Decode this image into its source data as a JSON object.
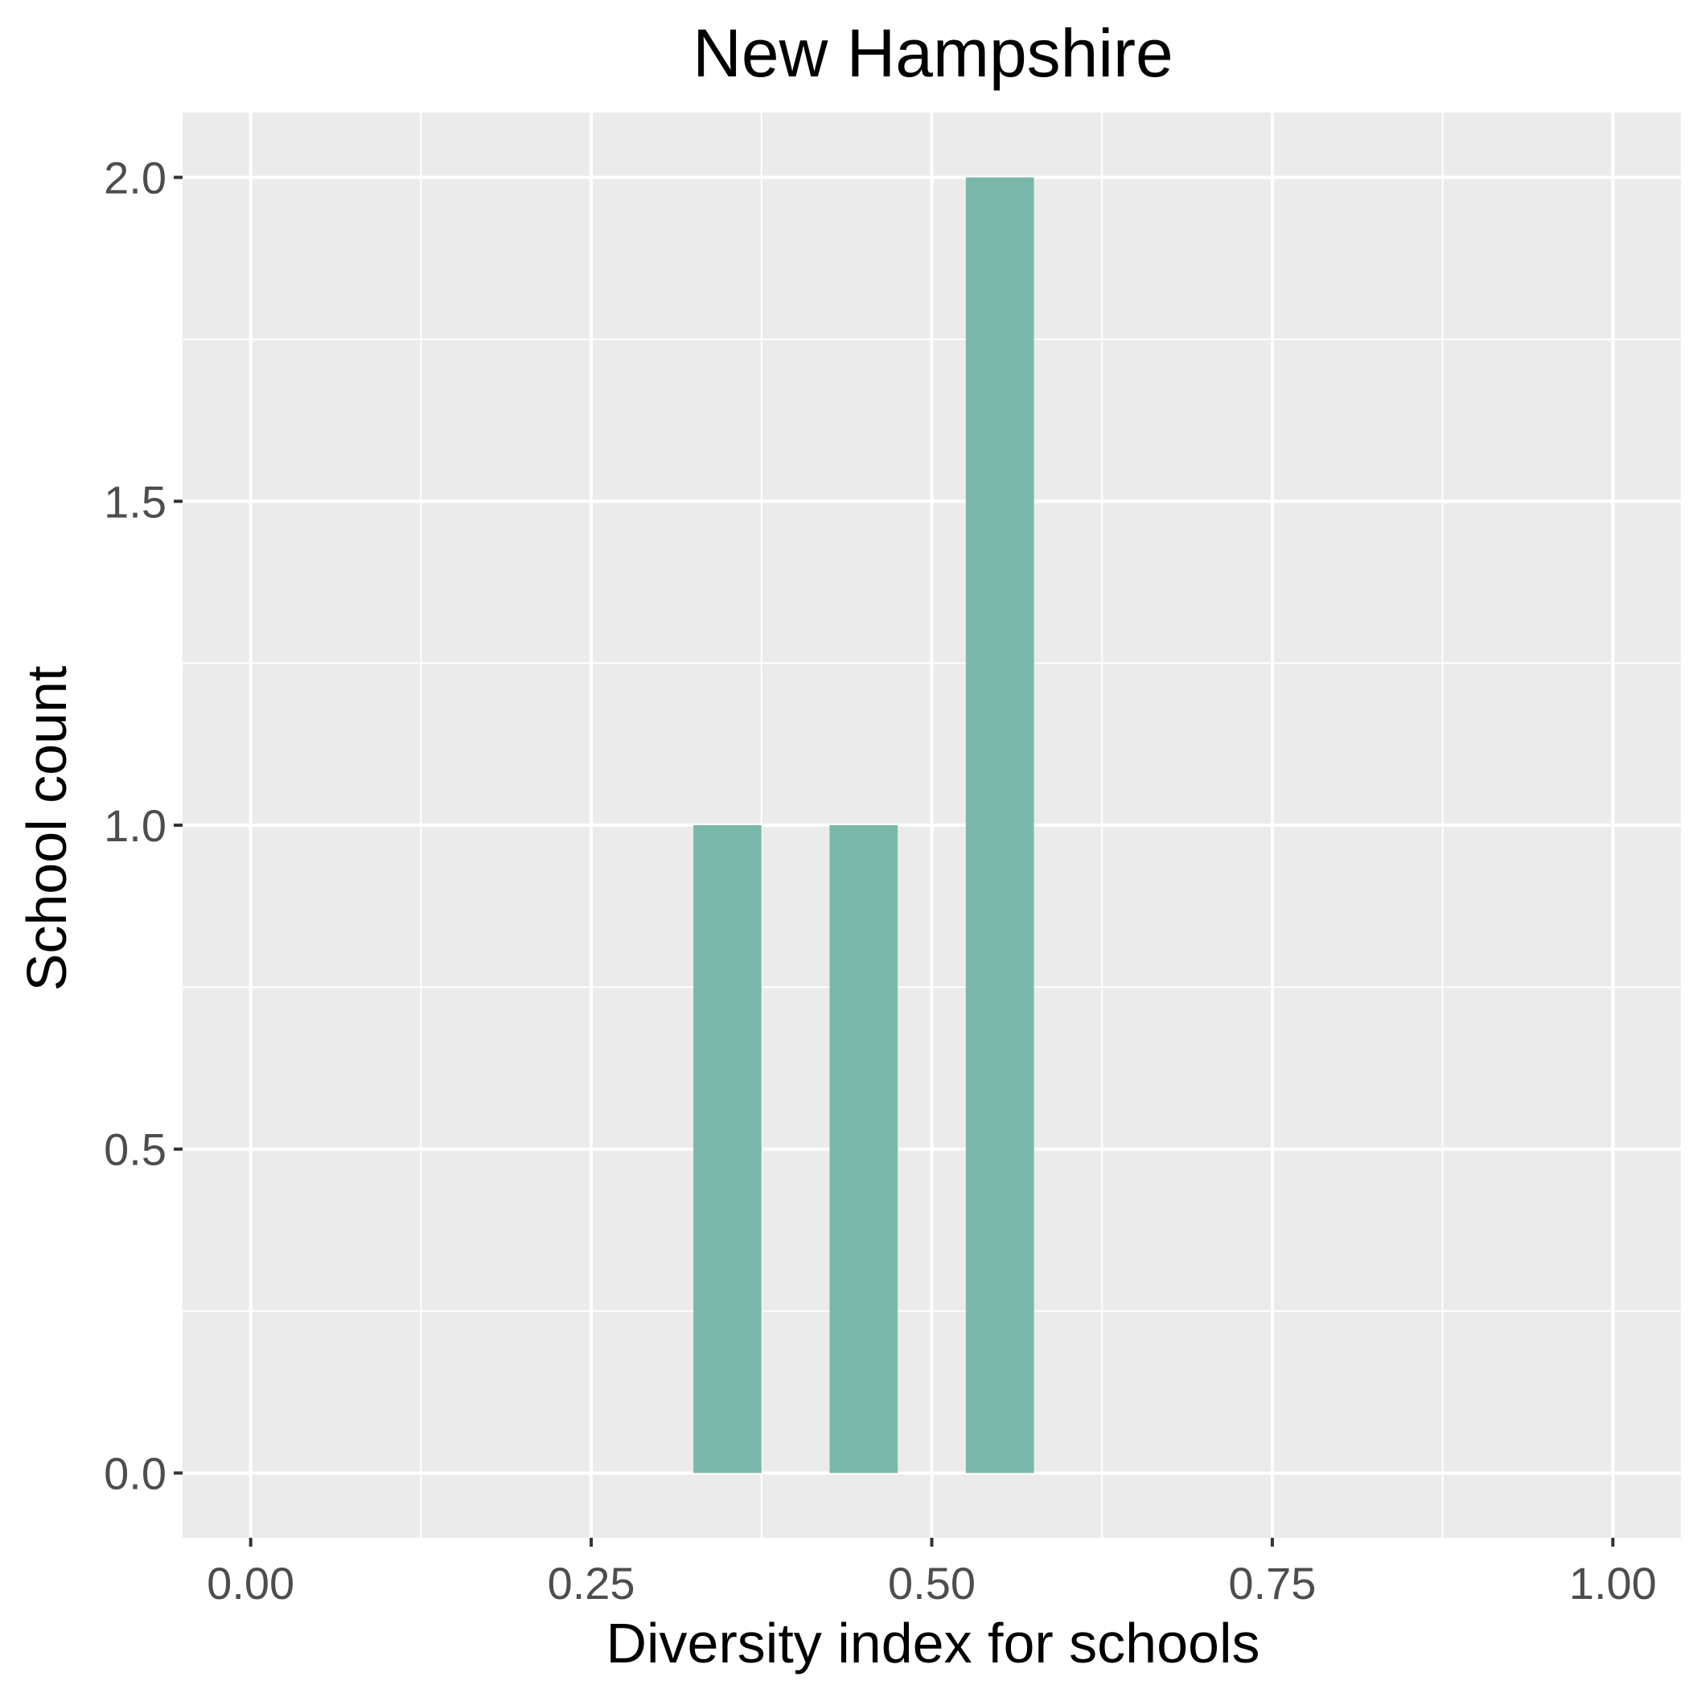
{
  "chart_data": {
    "type": "bar",
    "title": "New Hampshire",
    "xlabel": "Diversity index for schools",
    "ylabel": "School count",
    "xlim": [
      -0.05,
      1.05
    ],
    "ylim": [
      -0.1,
      2.1
    ],
    "x_ticks": [
      0.0,
      0.25,
      0.5,
      0.75,
      1.0
    ],
    "x_tick_labels": [
      "0.00",
      "0.25",
      "0.50",
      "0.75",
      "1.00"
    ],
    "y_ticks": [
      0.0,
      0.5,
      1.0,
      1.5,
      2.0
    ],
    "y_tick_labels": [
      "0.0",
      "0.5",
      "1.0",
      "1.5",
      "2.0"
    ],
    "bins": [
      {
        "x0": 0.325,
        "x1": 0.375,
        "count": 1
      },
      {
        "x0": 0.425,
        "x1": 0.475,
        "count": 1
      },
      {
        "x0": 0.525,
        "x1": 0.575,
        "count": 2
      }
    ],
    "bar_color": "#7ab8aa",
    "panel_background": "#ebebeb",
    "grid": true,
    "legend": "none"
  }
}
